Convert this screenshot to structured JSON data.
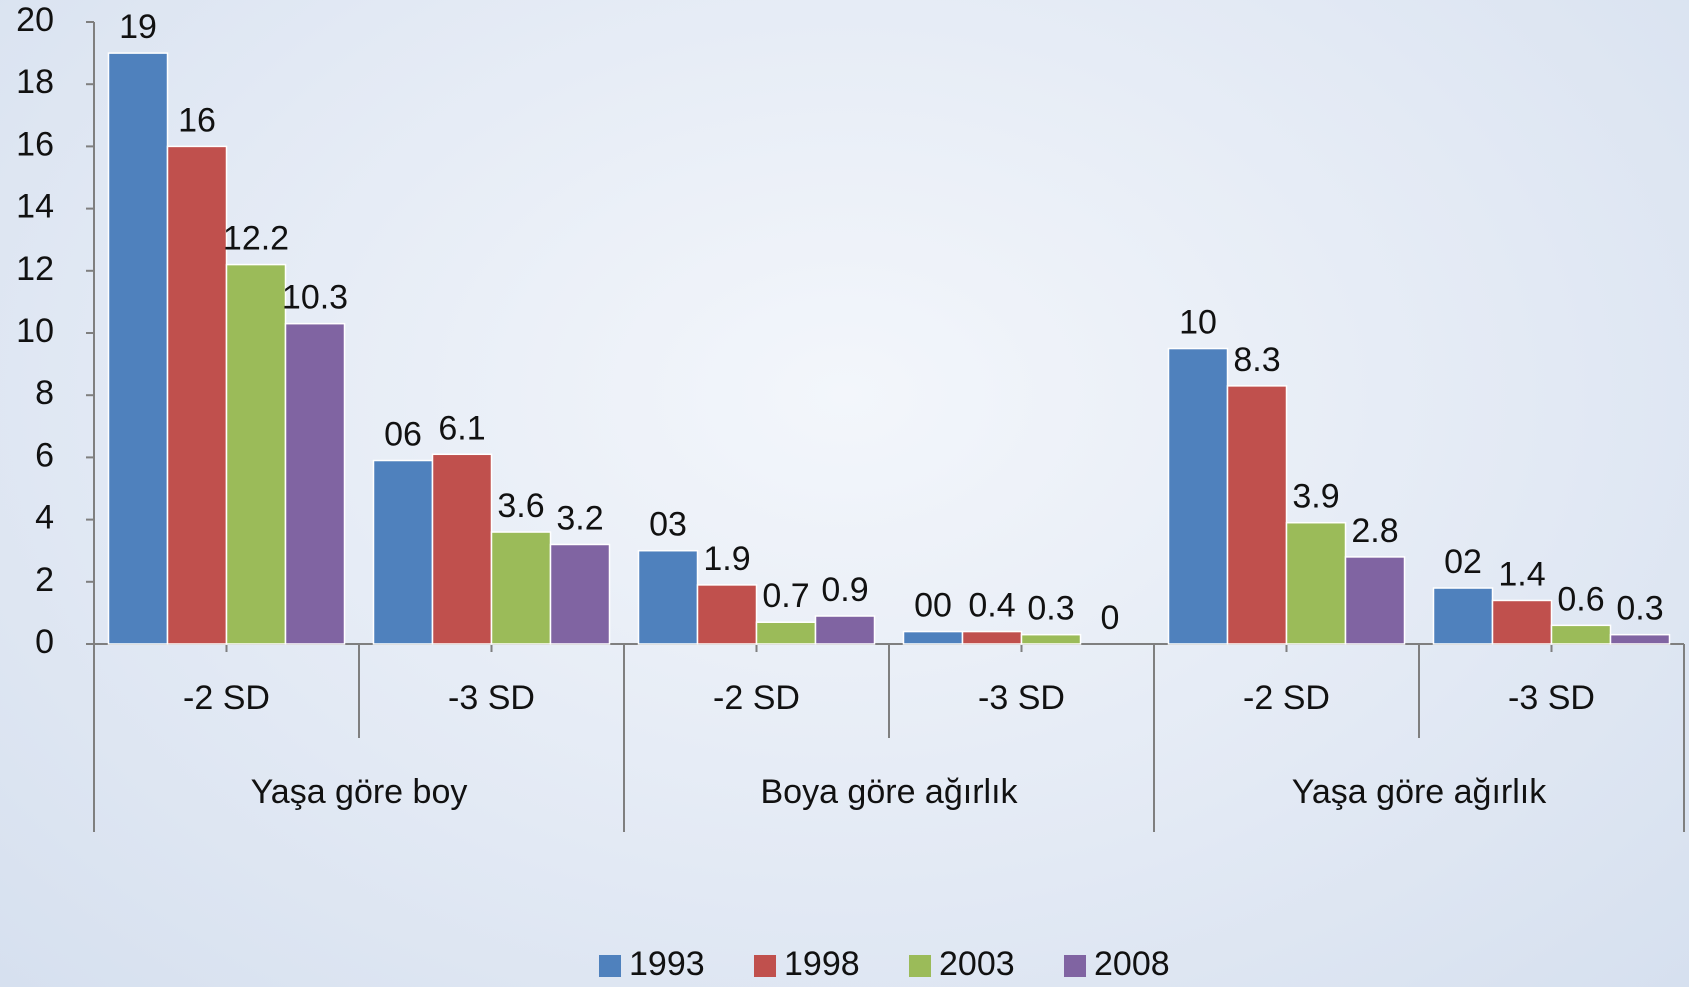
{
  "chart_data": {
    "type": "bar",
    "categories": [
      "-2 SD",
      "-3 SD",
      "-2 SD",
      "-3 SD",
      "-2 SD",
      "-3 SD"
    ],
    "groups": [
      "Yaşa göre boy",
      "Boya göre ağırlık",
      "Yaşa göre ağırlık"
    ],
    "series": [
      {
        "name": "1993",
        "color": "#4f81bd",
        "values": [
          19,
          5.9,
          3.0,
          0.4,
          9.5,
          1.8
        ],
        "value_labels": [
          "19",
          "06",
          "03",
          "00",
          "10",
          "02"
        ]
      },
      {
        "name": "1998",
        "color": "#c0504d",
        "values": [
          16,
          6.1,
          1.9,
          0.4,
          8.3,
          1.4
        ]
      },
      {
        "name": "2003",
        "color": "#9bbb59",
        "values": [
          12.2,
          3.6,
          0.7,
          0.3,
          3.9,
          0.6
        ]
      },
      {
        "name": "2008",
        "color": "#8064a2",
        "values": [
          10.3,
          3.2,
          0.9,
          0,
          2.8,
          0.3
        ]
      }
    ],
    "ylim": [
      0,
      20
    ],
    "yticks": [
      0,
      2,
      4,
      6,
      8,
      10,
      12,
      14,
      16,
      18,
      20
    ],
    "grid": false,
    "legend": "bottom"
  }
}
